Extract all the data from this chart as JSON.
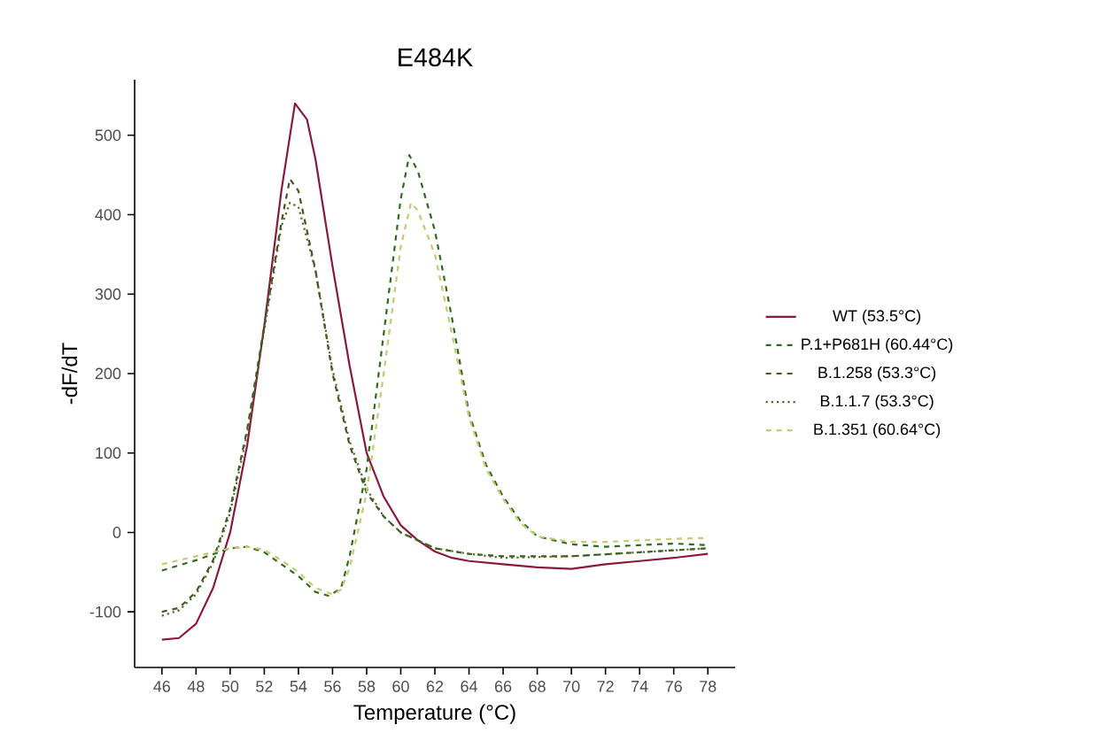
{
  "chart_data": {
    "type": "line",
    "title": "E484K",
    "xlabel": "Temperature (°C)",
    "ylabel": "-dF/dT",
    "xlim": [
      44.4,
      79.6
    ],
    "ylim": [
      -170,
      570
    ],
    "xticks": [
      46,
      48,
      50,
      52,
      54,
      56,
      58,
      60,
      62,
      64,
      66,
      68,
      70,
      72,
      74,
      76,
      78
    ],
    "yticks": [
      -100,
      0,
      100,
      200,
      300,
      400,
      500
    ],
    "grid": false,
    "legend": "right",
    "marker": "none",
    "series": [
      {
        "name": "WT (53.5°C)",
        "color": "#8b1a3a",
        "line_style": "solid",
        "x": [
          46,
          47,
          48,
          49,
          50,
          51,
          52,
          53,
          53.8,
          54.5,
          55,
          56,
          57,
          58,
          59,
          60,
          61,
          62,
          63,
          64,
          66,
          68,
          70,
          72,
          74,
          76,
          78
        ],
        "values": [
          -135,
          -133,
          -115,
          -70,
          0,
          110,
          260,
          430,
          540,
          520,
          470,
          335,
          210,
          100,
          45,
          9,
          -10,
          -24,
          -32,
          -36,
          -40,
          -44,
          -46,
          -40,
          -36,
          -32,
          -27
        ]
      },
      {
        "name": "P.1+P681H (60.44°C)",
        "color": "#2e6b1e",
        "line_style": "dashed",
        "x": [
          46,
          48,
          50,
          51,
          52,
          53,
          54,
          55,
          55.8,
          56.5,
          57,
          58,
          59,
          60,
          60.5,
          61,
          62,
          63,
          64,
          65,
          66,
          67,
          68,
          70,
          72,
          74,
          76,
          78
        ],
        "values": [
          -48,
          -35,
          -20,
          -18,
          -25,
          -40,
          -55,
          -75,
          -80,
          -70,
          -30,
          80,
          250,
          420,
          475,
          455,
          380,
          270,
          150,
          85,
          45,
          15,
          -5,
          -15,
          -18,
          -16,
          -14,
          -16
        ]
      },
      {
        "name": "B.1.258 (53.3°C)",
        "color": "#3d5a1a",
        "line_style": "dashed",
        "x": [
          46,
          47,
          48,
          49,
          50,
          51,
          52,
          53,
          53.5,
          54,
          55,
          56,
          57,
          58,
          59,
          60,
          62,
          64,
          66,
          70,
          74,
          78
        ],
        "values": [
          -100,
          -95,
          -75,
          -35,
          30,
          130,
          260,
          390,
          445,
          430,
          330,
          200,
          110,
          50,
          20,
          0,
          -20,
          -27,
          -30,
          -30,
          -25,
          -20
        ]
      },
      {
        "name": "B.1.1.7 (53.3°C)",
        "color": "#4a6b2a",
        "line_style": "dotted",
        "x": [
          46,
          47,
          48,
          49,
          50,
          51,
          52,
          53,
          53.5,
          54,
          55,
          56,
          57,
          58,
          59,
          60,
          62,
          64,
          66,
          70,
          74,
          78
        ],
        "values": [
          -105,
          -98,
          -78,
          -38,
          25,
          125,
          255,
          385,
          415,
          410,
          330,
          205,
          115,
          55,
          20,
          0,
          -20,
          -27,
          -32,
          -30,
          -25,
          -20
        ]
      },
      {
        "name": "B.1.351 (60.64°C)",
        "color": "#c8c870",
        "line_style": "dashed",
        "x": [
          46,
          48,
          50,
          51,
          52,
          53,
          54,
          55,
          56,
          56.5,
          57,
          58,
          59,
          60,
          60.6,
          61,
          62,
          63,
          64,
          65,
          66,
          67,
          68,
          70,
          72,
          74,
          76,
          78
        ],
        "values": [
          -40,
          -30,
          -20,
          -18,
          -22,
          -35,
          -50,
          -70,
          -78,
          -72,
          -45,
          50,
          200,
          360,
          415,
          405,
          350,
          250,
          145,
          80,
          42,
          12,
          -5,
          -12,
          -12,
          -10,
          -8,
          -7
        ]
      }
    ]
  }
}
